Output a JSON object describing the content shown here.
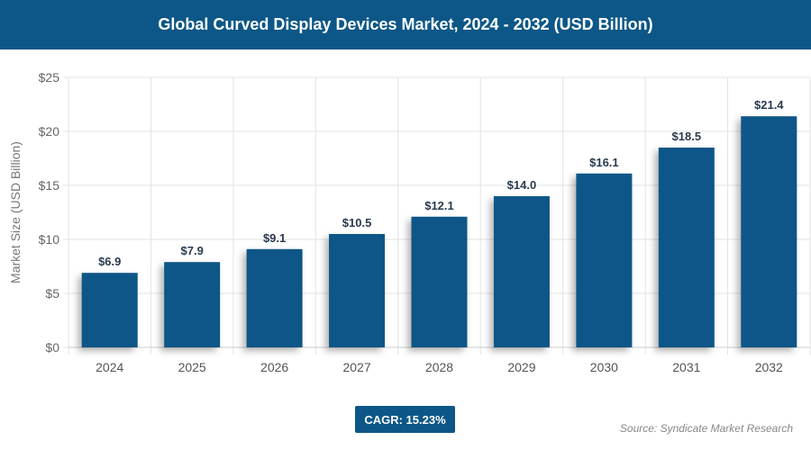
{
  "header": {
    "title": "Global Curved Display Devices Market, 2024 - 2032 (USD Billion)"
  },
  "chart_data": {
    "type": "bar",
    "title": "Global Curved Display Devices Market, 2024 - 2032 (USD Billion)",
    "categories": [
      "2024",
      "2025",
      "2026",
      "2027",
      "2028",
      "2029",
      "2030",
      "2031",
      "2032"
    ],
    "values": [
      6.9,
      7.9,
      9.1,
      10.5,
      12.1,
      14.0,
      16.1,
      18.5,
      21.4
    ],
    "data_labels": [
      "$6.9",
      "$7.9",
      "$9.1",
      "$10.5",
      "$12.1",
      "$14.0",
      "$16.1",
      "$18.5",
      "$21.4"
    ],
    "xlabel": "",
    "ylabel": "Market Size (USD Billion)",
    "ylim": [
      0,
      25
    ],
    "yticks": [
      0,
      5,
      10,
      15,
      20,
      25
    ],
    "ytick_labels": [
      "$0",
      "$5",
      "$10",
      "$15",
      "$20",
      "$25"
    ],
    "grid": true,
    "bar_color": "#0c5787"
  },
  "footer": {
    "cagr": "CAGR: 15.23%",
    "source": "Source: Syndicate Market Research"
  }
}
